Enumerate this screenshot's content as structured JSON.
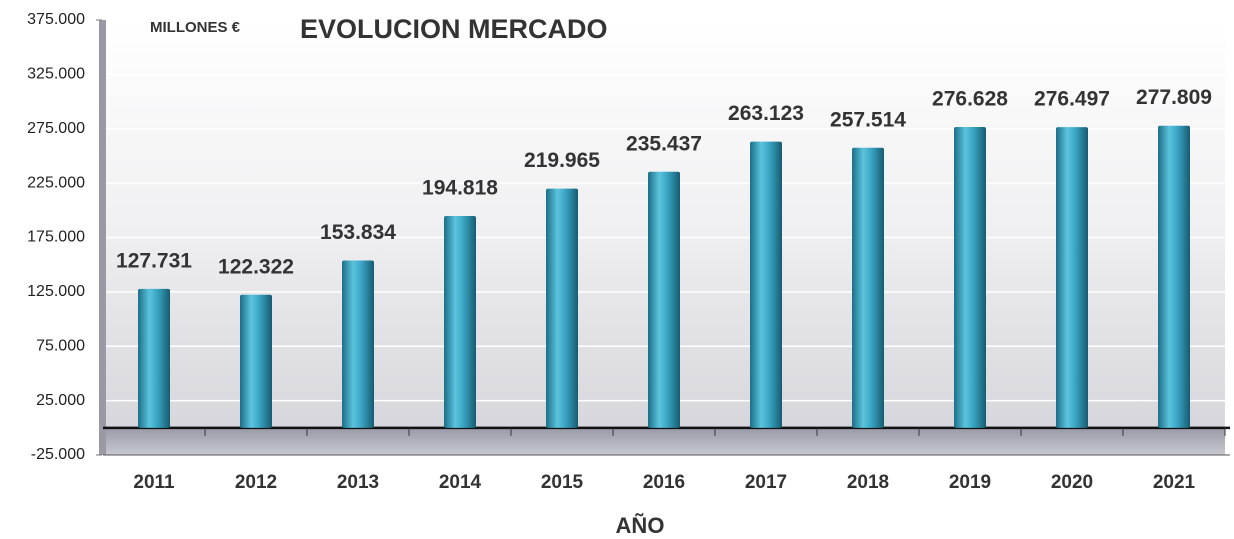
{
  "chart_data": {
    "type": "bar",
    "title": "EVOLUCION MERCADO",
    "subtitle": "MILLONES €",
    "x_label": "AÑO",
    "categories": [
      "2011",
      "2012",
      "2013",
      "2014",
      "2015",
      "2016",
      "2017",
      "2018",
      "2019",
      "2020",
      "2021"
    ],
    "values": [
      127731,
      122322,
      153834,
      194818,
      219965,
      235437,
      263123,
      257514,
      276628,
      276497,
      277809
    ],
    "value_labels": [
      "127.731",
      "122.322",
      "153.834",
      "194.818",
      "219.965",
      "235.437",
      "263.123",
      "257.514",
      "276.628",
      "276.497",
      "277.809"
    ],
    "color": "#3aa6c4",
    "ylim": [
      -25000,
      375000
    ],
    "yticks": [
      {
        "value": -25000,
        "label": "-25.000"
      },
      {
        "value": 25000,
        "label": "25.000"
      },
      {
        "value": 75000,
        "label": "75.000"
      },
      {
        "value": 125000,
        "label": "125.000"
      },
      {
        "value": 175000,
        "label": "175.000"
      },
      {
        "value": 225000,
        "label": "225.000"
      },
      {
        "value": 275000,
        "label": "275.000"
      },
      {
        "value": 325000,
        "label": "325.000"
      },
      {
        "value": 375000,
        "label": "375.000"
      }
    ],
    "grid": true
  }
}
